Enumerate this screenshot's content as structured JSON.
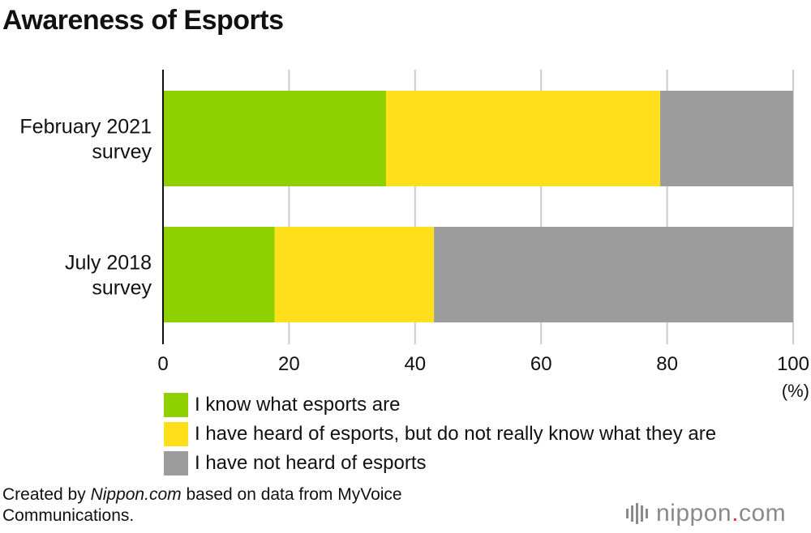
{
  "page": {
    "title": "Awareness of Esports",
    "source_prefix": "Created by ",
    "source_site": "Nippon.com",
    "source_suffix": " based on data from MyVoice Communications.",
    "logo_name": "nippon",
    "logo_dot": ".",
    "logo_tld": "com"
  },
  "colors": {
    "know": "#8fd100",
    "heard": "#ffe01a",
    "not_heard": "#9c9c9c",
    "grid": "#cccccc",
    "axis": "#111111",
    "logo_accent": "#e03030"
  },
  "chart_data": {
    "type": "bar",
    "orientation": "horizontal",
    "stacked": true,
    "title": "Awareness of Esports",
    "categories": [
      [
        "February 2021",
        "survey"
      ],
      [
        "July 2018",
        "survey"
      ]
    ],
    "series": [
      {
        "name": "I know what esports are",
        "color": "#8fd100",
        "values": [
          35.4,
          17.7
        ]
      },
      {
        "name": "I have heard of esports, but do not really know what they are",
        "color": "#ffe01a",
        "values": [
          43.5,
          25.3
        ]
      },
      {
        "name": "I have not heard of esports",
        "color": "#9c9c9c",
        "values": [
          21.1,
          57.0
        ]
      }
    ],
    "xlim": [
      0,
      100
    ],
    "xticks": [
      0,
      20,
      40,
      60,
      80,
      100
    ],
    "xunit": "(%)",
    "grid": true,
    "legend_position": "bottom"
  }
}
